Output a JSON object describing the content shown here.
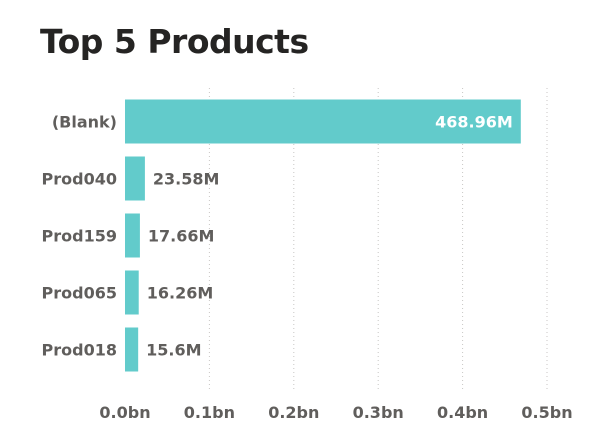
{
  "chart_data": {
    "type": "bar",
    "orientation": "horizontal",
    "title": "Top 5 Products",
    "categories": [
      "(Blank)",
      "Prod040",
      "Prod159",
      "Prod065",
      "Prod018"
    ],
    "values": [
      468.96,
      23.58,
      17.66,
      16.26,
      15.6
    ],
    "value_unit": "M",
    "data_labels": [
      "468.96M",
      "23.58M",
      "17.66M",
      "16.26M",
      "15.6M"
    ],
    "xlim": [
      0,
      500
    ],
    "x_ticks": [
      0,
      100,
      200,
      300,
      400,
      500
    ],
    "x_tick_labels": [
      "0.0bn",
      "0.1bn",
      "0.2bn",
      "0.3bn",
      "0.4bn",
      "0.5bn"
    ],
    "xlabel": "",
    "ylabel": "",
    "grid": true,
    "colors": {
      "bar": "#62CBCB",
      "label_inside": "#FFFFFF",
      "label_outside": "#605E5C"
    }
  }
}
